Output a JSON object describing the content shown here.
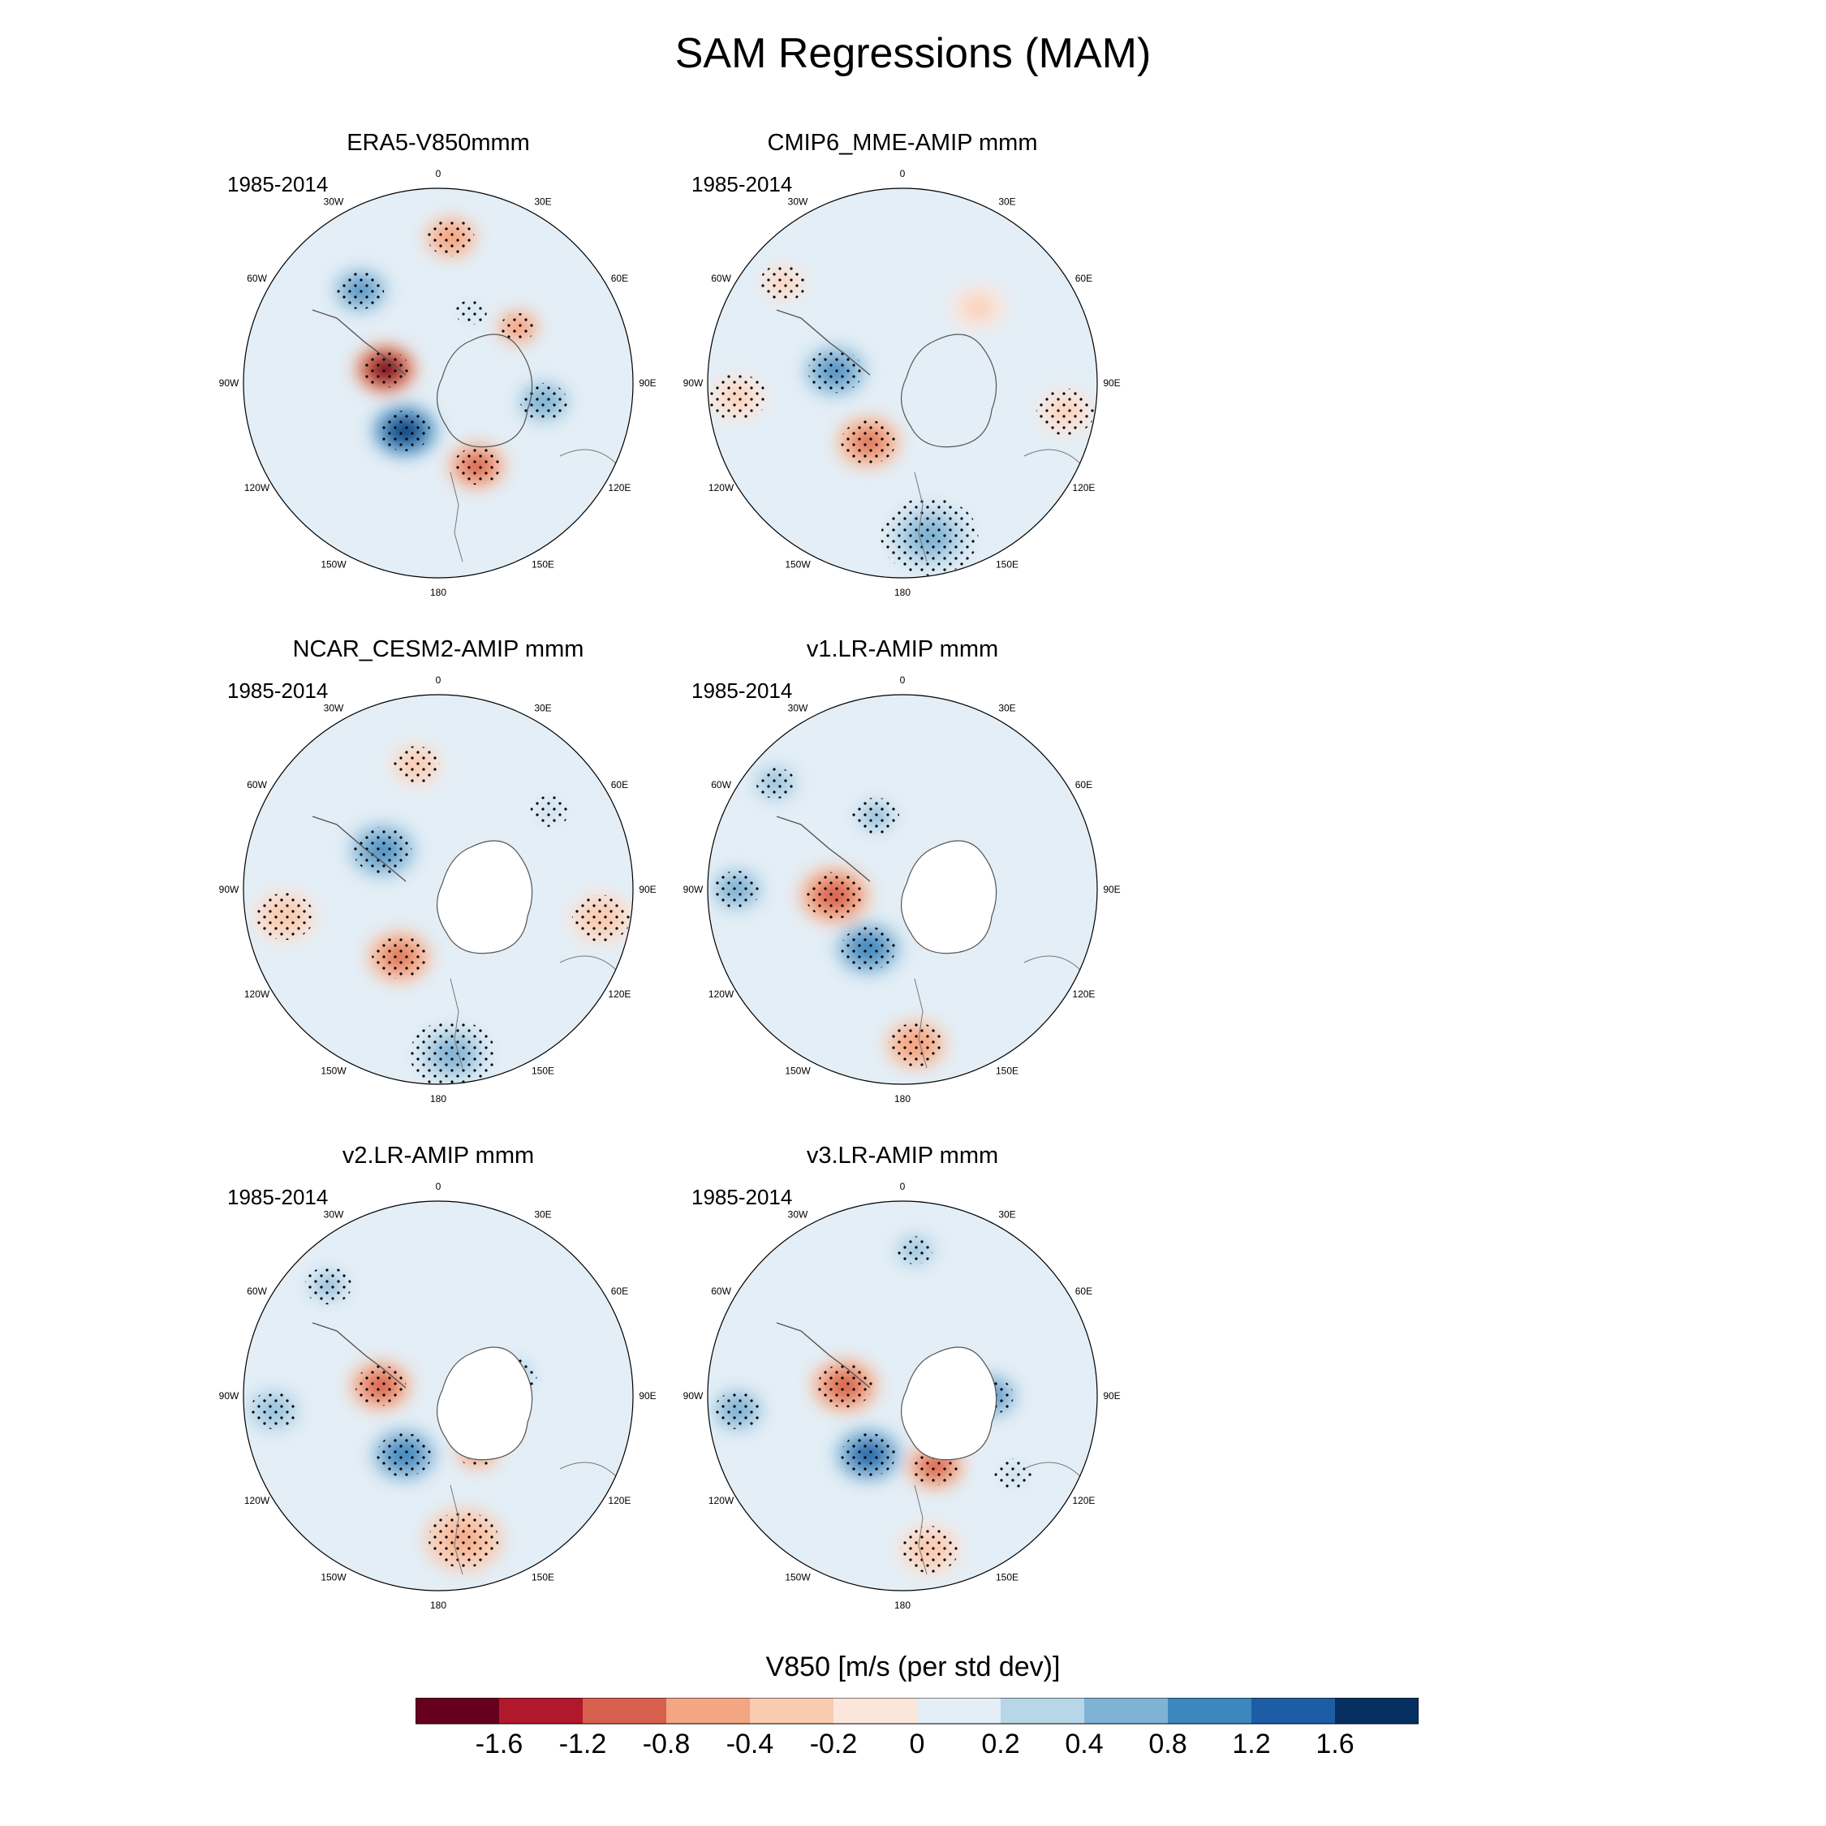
{
  "title": "SAM Regressions (MAM)",
  "lon_labels": [
    "0",
    "30E",
    "60E",
    "90E",
    "120E",
    "150E",
    "180",
    "150W",
    "120W",
    "90W",
    "60W",
    "30W"
  ],
  "panels": [
    {
      "title": "ERA5-V850mmm",
      "period": "1985-2014",
      "anomalies": [
        {
          "lon": -75,
          "r": 0.28,
          "v": -1.9,
          "s": 0.12
        },
        {
          "lon": -145,
          "r": 0.3,
          "v": 1.8,
          "s": 0.13
        },
        {
          "lon": 155,
          "r": 0.47,
          "v": -1.0,
          "s": 0.12
        },
        {
          "lon": -40,
          "r": 0.62,
          "v": 0.9,
          "s": 0.12
        },
        {
          "lon": 5,
          "r": 0.75,
          "v": -0.6,
          "s": 0.12
        },
        {
          "lon": 55,
          "r": 0.5,
          "v": -0.8,
          "s": 0.09
        },
        {
          "lon": 100,
          "r": 0.55,
          "v": 0.6,
          "s": 0.12
        },
        {
          "lon": 25,
          "r": 0.4,
          "v": 0.3,
          "s": 0.08
        }
      ]
    },
    {
      "title": "CMIP6_MME-AMIP  mmm",
      "period": "1985-2014",
      "anomalies": [
        {
          "lon": -80,
          "r": 0.35,
          "v": 0.9,
          "s": 0.14
        },
        {
          "lon": -150,
          "r": 0.35,
          "v": -0.9,
          "s": 0.14
        },
        {
          "lon": 170,
          "r": 0.8,
          "v": 0.45,
          "s": 0.25
        },
        {
          "lon": -95,
          "r": 0.85,
          "v": -0.3,
          "s": 0.15
        },
        {
          "lon": 100,
          "r": 0.85,
          "v": -0.3,
          "s": 0.15
        },
        {
          "lon": 45,
          "r": 0.55,
          "v": -0.25,
          "s": 0.15
        },
        {
          "lon": -50,
          "r": 0.8,
          "v": -0.3,
          "s": 0.12
        }
      ]
    },
    {
      "title": "NCAR_CESM2-AMIP  mmm",
      "period": "1985-2014",
      "anomalies": [
        {
          "lon": -55,
          "r": 0.35,
          "v": 0.8,
          "s": 0.15
        },
        {
          "lon": -150,
          "r": 0.4,
          "v": -0.9,
          "s": 0.14
        },
        {
          "lon": 175,
          "r": 0.85,
          "v": 0.45,
          "s": 0.22
        },
        {
          "lon": -100,
          "r": 0.8,
          "v": -0.35,
          "s": 0.15
        },
        {
          "lon": 100,
          "r": 0.85,
          "v": -0.35,
          "s": 0.15
        },
        {
          "lon": -10,
          "r": 0.65,
          "v": -0.35,
          "s": 0.12
        },
        {
          "lon": 55,
          "r": 0.7,
          "v": 0.3,
          "s": 0.1
        }
      ]
    },
    {
      "title": "v1.LR-AMIP  mmm",
      "period": "1985-2014",
      "anomalies": [
        {
          "lon": -95,
          "r": 0.35,
          "v": -1.0,
          "s": 0.15
        },
        {
          "lon": -150,
          "r": 0.35,
          "v": 1.0,
          "s": 0.14
        },
        {
          "lon": 175,
          "r": 0.8,
          "v": -0.6,
          "s": 0.14
        },
        {
          "lon": -90,
          "r": 0.85,
          "v": 0.6,
          "s": 0.12
        },
        {
          "lon": -50,
          "r": 0.85,
          "v": 0.5,
          "s": 0.1
        },
        {
          "lon": -20,
          "r": 0.4,
          "v": 0.4,
          "s": 0.12
        }
      ]
    },
    {
      "title": "v2.LR-AMIP  mmm",
      "period": "1985-2014",
      "anomalies": [
        {
          "lon": -80,
          "r": 0.3,
          "v": -1.2,
          "s": 0.13
        },
        {
          "lon": -150,
          "r": 0.35,
          "v": 1.1,
          "s": 0.14
        },
        {
          "lon": 170,
          "r": 0.75,
          "v": -0.5,
          "s": 0.18
        },
        {
          "lon": 145,
          "r": 0.35,
          "v": -0.6,
          "s": 0.1
        },
        {
          "lon": -95,
          "r": 0.85,
          "v": 0.5,
          "s": 0.12
        },
        {
          "lon": -45,
          "r": 0.8,
          "v": 0.4,
          "s": 0.12
        },
        {
          "lon": 75,
          "r": 0.4,
          "v": 0.4,
          "s": 0.12
        }
      ]
    },
    {
      "title": "v3.LR-AMIP  mmm",
      "period": "1985-2014",
      "anomalies": [
        {
          "lon": -80,
          "r": 0.3,
          "v": -1.2,
          "s": 0.14
        },
        {
          "lon": -150,
          "r": 0.35,
          "v": 1.3,
          "s": 0.14
        },
        {
          "lon": 155,
          "r": 0.4,
          "v": -1.1,
          "s": 0.12
        },
        {
          "lon": 90,
          "r": 0.45,
          "v": 0.9,
          "s": 0.12
        },
        {
          "lon": -95,
          "r": 0.85,
          "v": 0.6,
          "s": 0.12
        },
        {
          "lon": 5,
          "r": 0.75,
          "v": 0.5,
          "s": 0.09
        },
        {
          "lon": 170,
          "r": 0.8,
          "v": -0.4,
          "s": 0.15
        },
        {
          "lon": 125,
          "r": 0.7,
          "v": 0.3,
          "s": 0.1
        }
      ]
    }
  ],
  "colorbar": {
    "title": "V850 [m/s (per std dev)]",
    "labels": [
      "-1.6",
      "-1.2",
      "-0.8",
      "-0.4",
      "-0.2",
      "0",
      "0.2",
      "0.4",
      "0.8",
      "1.2",
      "1.6"
    ],
    "levels": [
      -1.6,
      -1.2,
      -0.8,
      -0.4,
      -0.2,
      0,
      0.2,
      0.4,
      0.8,
      1.2,
      1.6
    ],
    "colors": [
      "#67001f",
      "#b2182b",
      "#d6604d",
      "#f4a582",
      "#f9cbb1",
      "#fbe6dc",
      "#e3eef6",
      "#b7d6e8",
      "#7fb3d5",
      "#3c87be",
      "#1c5da5",
      "#053061"
    ]
  }
}
